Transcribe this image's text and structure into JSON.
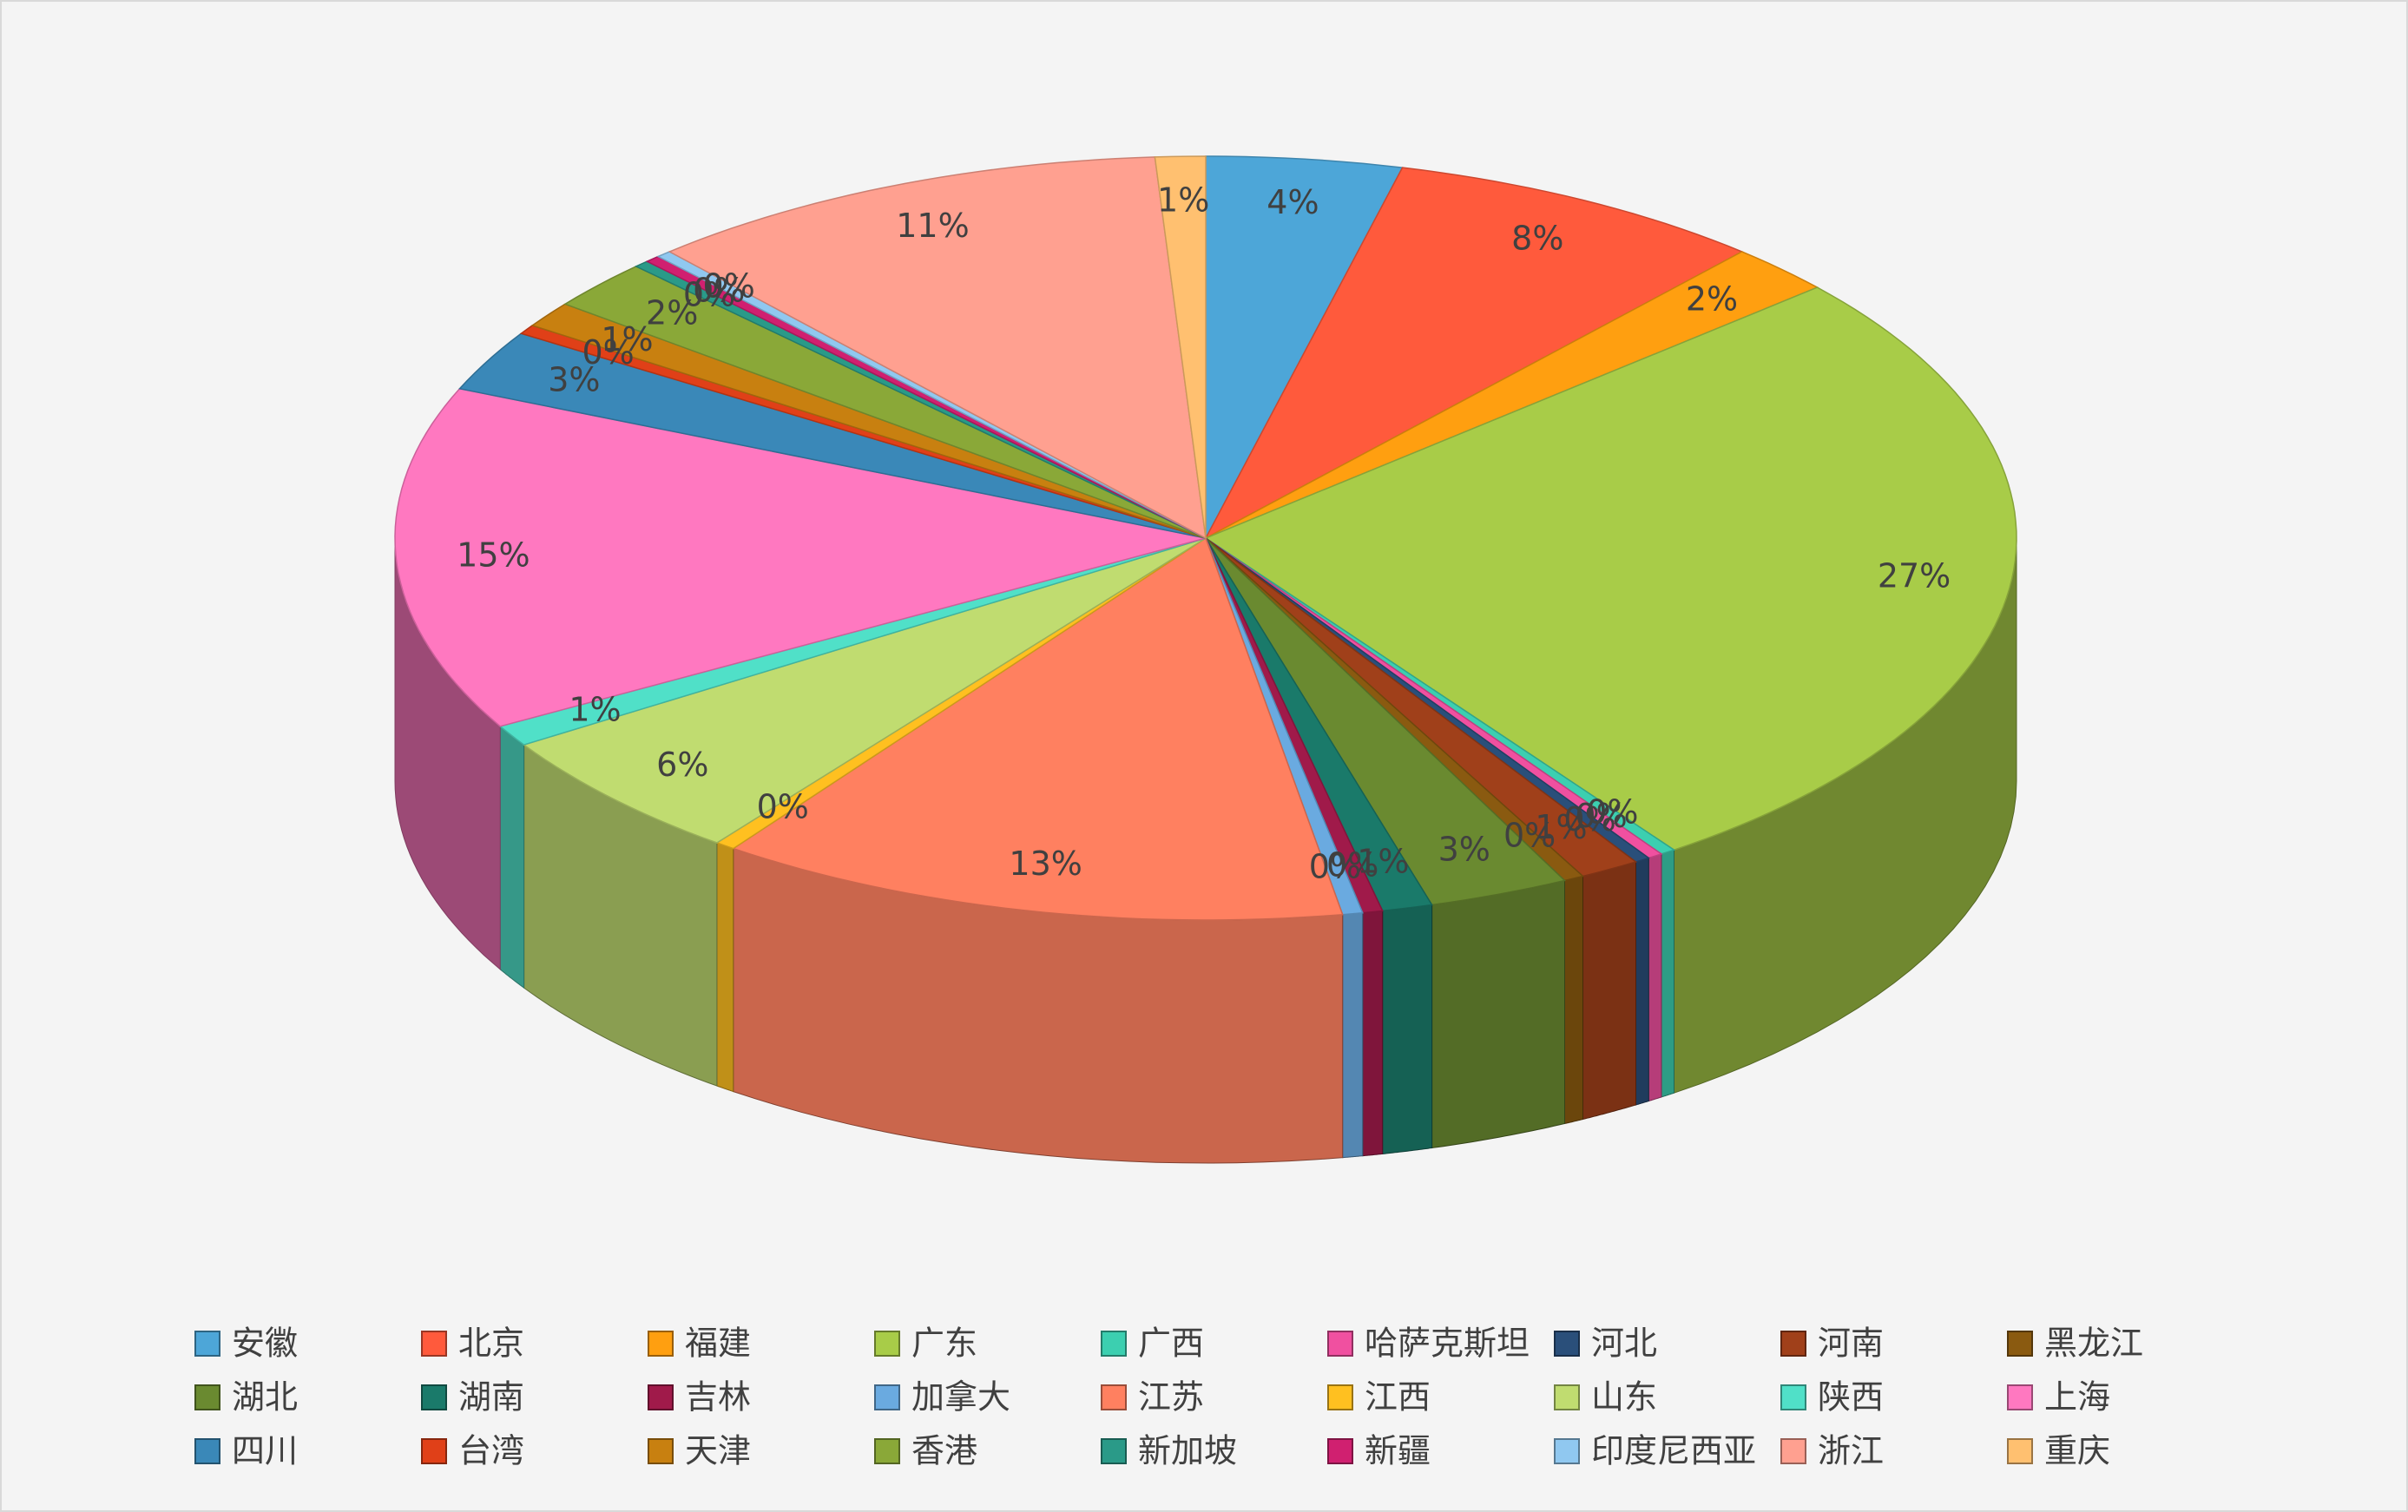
{
  "chart_data": {
    "type": "pie3d",
    "categories": [
      "安徽",
      "北京",
      "福建",
      "广东",
      "广西",
      "哈萨克斯坦",
      "河北",
      "河南",
      "黑龙江",
      "湖北",
      "湖南",
      "吉林",
      "加拿大",
      "江苏",
      "江西",
      "山东",
      "陕西",
      "上海",
      "四川",
      "台湾",
      "天津",
      "香港",
      "新加坡",
      "新疆",
      "印度尼西亚",
      "浙江",
      "重庆"
    ],
    "values": [
      3.9,
      7.6,
      2.1,
      26.6,
      0.3,
      0.3,
      0.3,
      1.2,
      0.4,
      2.8,
      1.0,
      0.4,
      0.4,
      12.6,
      0.4,
      5.6,
      0.9,
      14.6,
      2.6,
      0.4,
      1.1,
      2.1,
      0.3,
      0.3,
      0.3,
      10.5,
      1.0
    ],
    "value_labels": [
      "4%",
      "8%",
      "2%",
      "27%",
      "0%",
      "0%",
      "0%",
      "1%",
      "0%",
      "3%",
      "1%",
      "0%",
      "0%",
      "13%",
      "0%",
      "6%",
      "1%",
      "15%",
      "3%",
      "0%",
      "1%",
      "2%",
      "0%",
      "0%",
      "0%",
      "11%",
      "1%"
    ],
    "colors": [
      "#4da6d8",
      "#ff5a3c",
      "#ff9f10",
      "#a8cc48",
      "#3ccfb0",
      "#f050a0",
      "#2a4f7a",
      "#a0401a",
      "#8a5a10",
      "#6a8a30",
      "#1a7a6a",
      "#a01a4a",
      "#6aaae0",
      "#ff8060",
      "#ffc020",
      "#c0dc70",
      "#50e0c8",
      "#ff78c0",
      "#3a88b8",
      "#e04018",
      "#c88010",
      "#8aa838",
      "#2a9a88",
      "#d02070",
      "#90c8f0",
      "#ffa090",
      "#ffc070"
    ],
    "legend": "bottom"
  }
}
